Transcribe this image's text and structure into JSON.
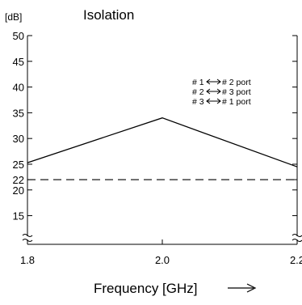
{
  "chart_data": {
    "type": "line",
    "title": "Isolation",
    "unit_label": "[dB]",
    "xlabel": "Frequency [GHz]",
    "x_arrow": "—>",
    "xlim": [
      1.8,
      2.2
    ],
    "ylim": [
      11,
      50
    ],
    "x_ticks": [
      "1.8",
      "2.0",
      "2.2"
    ],
    "y_ticks": [
      50,
      45,
      40,
      35,
      30,
      25,
      22,
      20,
      15
    ],
    "axis_breaks": true,
    "series": [
      {
        "x": [
          1.8,
          2.0,
          2.2
        ],
        "y": [
          25.3,
          34,
          24.5
        ]
      }
    ],
    "reference_line": {
      "y": 22,
      "style": "dashed"
    },
    "legend_position": "top-right",
    "legend": [
      {
        "from": "# 1",
        "to": "# 2 port"
      },
      {
        "from": "# 2",
        "to": "# 3 port"
      },
      {
        "from": "# 3",
        "to": "# 1 port"
      }
    ]
  }
}
